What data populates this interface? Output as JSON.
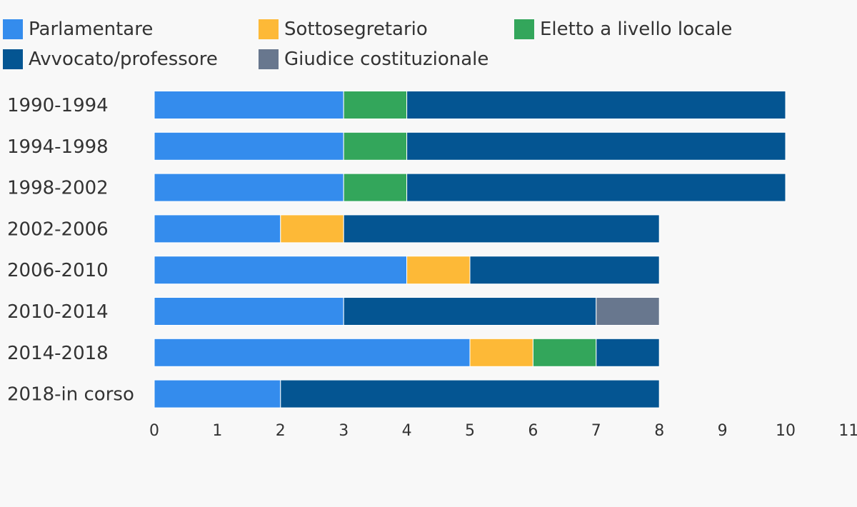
{
  "chart_data": {
    "type": "bar",
    "orientation": "horizontal",
    "stacked": true,
    "categories": [
      "1990-1994",
      "1994-1998",
      "1998-2002",
      "2002-2006",
      "2006-2010",
      "2010-2014",
      "2014-2018",
      "2018-in corso"
    ],
    "series": [
      {
        "name": "Parlamentare",
        "color": "#348ced",
        "values": [
          3,
          3,
          3,
          2,
          4,
          3,
          5,
          2
        ]
      },
      {
        "name": "Sottosegretario",
        "color": "#fdb937",
        "values": [
          0,
          0,
          0,
          1,
          1,
          0,
          1,
          0
        ]
      },
      {
        "name": "Eletto a livello locale",
        "color": "#33a65b",
        "values": [
          1,
          1,
          1,
          0,
          0,
          0,
          1,
          0
        ]
      },
      {
        "name": "Avvocato/professore",
        "color": "#045592",
        "values": [
          6,
          6,
          6,
          5,
          3,
          4,
          1,
          6
        ]
      },
      {
        "name": "Giudice costituzionale",
        "color": "#68778e",
        "values": [
          0,
          0,
          0,
          0,
          0,
          1,
          0,
          0
        ]
      }
    ],
    "xlim": [
      0,
      11
    ],
    "xticks": [
      0,
      1,
      2,
      3,
      4,
      5,
      6,
      7,
      8,
      9,
      10,
      11
    ],
    "title": "",
    "xlabel": "",
    "ylabel": "",
    "grid": false,
    "legend_position": "top"
  }
}
